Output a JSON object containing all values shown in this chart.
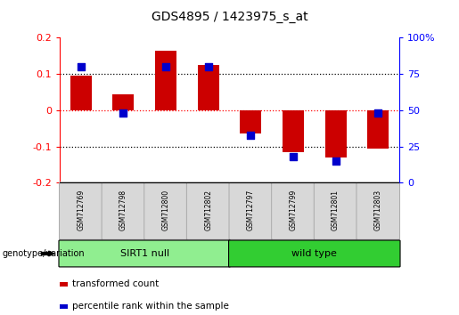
{
  "title": "GDS4895 / 1423975_s_at",
  "samples": [
    "GSM712769",
    "GSM712798",
    "GSM712800",
    "GSM712802",
    "GSM712797",
    "GSM712799",
    "GSM712801",
    "GSM712803"
  ],
  "transformed_count_8": [
    0.095,
    0.045,
    0.165,
    0.125,
    -0.065,
    -0.115,
    -0.13,
    -0.105
  ],
  "percentile_rank_scaled": [
    80,
    48,
    80,
    80,
    33,
    18,
    15,
    48
  ],
  "groups": [
    {
      "label": "SIRT1 null",
      "color": "#90EE90",
      "start": 0,
      "end": 4
    },
    {
      "label": "wild type",
      "color": "#32CD32",
      "start": 4,
      "end": 8
    }
  ],
  "bar_color": "#CC0000",
  "dot_color": "#0000CC",
  "ylim_left": [
    -0.2,
    0.2
  ],
  "ylim_right": [
    0,
    100
  ],
  "yticks_left": [
    -0.2,
    -0.1,
    0,
    0.1,
    0.2
  ],
  "yticks_right": [
    0,
    25,
    50,
    75,
    100
  ],
  "ytick_labels_left": [
    "-0.2",
    "-0.1",
    "0",
    "0.1",
    "0.2"
  ],
  "ytick_labels_right": [
    "0",
    "25",
    "50",
    "75",
    "100%"
  ],
  "hline_dotted_black": [
    0.1,
    -0.1
  ],
  "hline_dotted_red": [
    0.0
  ],
  "legend_items": [
    {
      "color": "#CC0000",
      "label": "transformed count"
    },
    {
      "color": "#0000CC",
      "label": "percentile rank within the sample"
    }
  ],
  "genotype_label": "genotype/variation",
  "bar_width": 0.5,
  "background_color": "#ffffff",
  "plot_bg": "#ffffff"
}
